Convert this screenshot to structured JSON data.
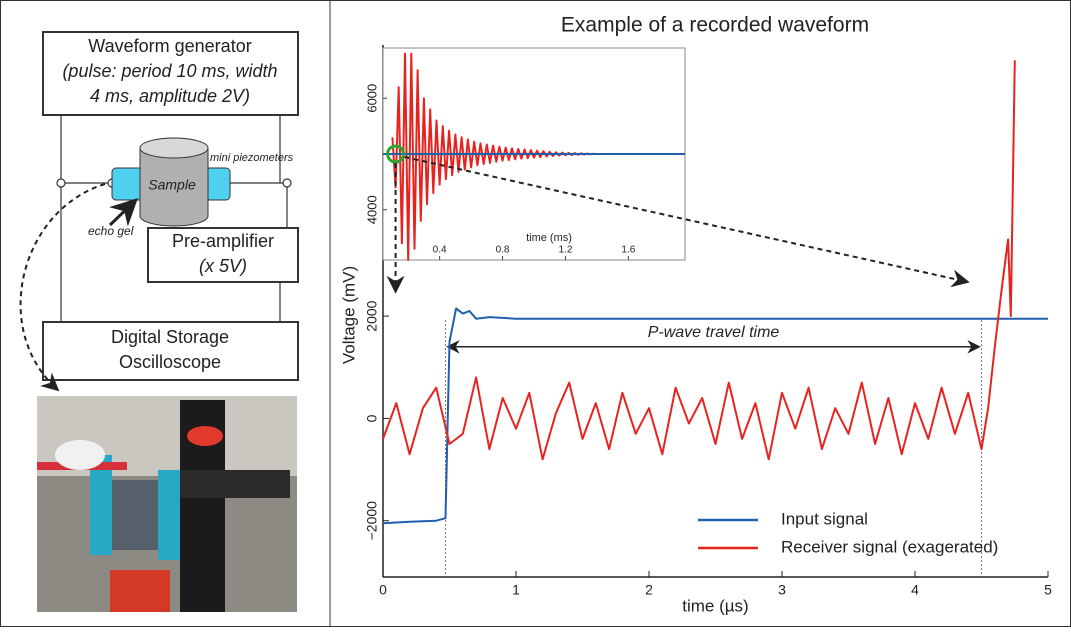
{
  "diagram": {
    "generator": {
      "title": "Waveform generator",
      "lines": [
        "(pulse: period 10 ms, width",
        "4 ms, amplitude 2V)"
      ]
    },
    "sample": "Sample",
    "piezometers": "mini piezometers",
    "echo_gel": "echo gel",
    "preamp": {
      "title": "Pre-amplifier",
      "gain": "(x 5V)"
    },
    "oscilloscope": [
      "Digital Storage",
      "Oscilloscope"
    ]
  },
  "chart_data": [
    {
      "type": "line",
      "title": "Example of a recorded waveform",
      "xlabel": "time (µs)",
      "ylabel": "Voltage (mV)",
      "xlim": [
        0,
        5
      ],
      "xticks": [
        0,
        1,
        2,
        3,
        4,
        5
      ],
      "ylim": [
        -3100,
        7300
      ],
      "yticks": [
        {
          "value": -2000,
          "label": "−2000"
        },
        0,
        2000
      ],
      "legend": "lower right",
      "annotation": {
        "text": "P-wave travel time",
        "x": [
          0.47,
          4.5
        ]
      },
      "series": [
        {
          "name": "Input signal",
          "color": "#1f5fad",
          "x": [
            0,
            0.2,
            0.4,
            0.47,
            0.5,
            0.55,
            0.6,
            0.65,
            0.7,
            0.8,
            1,
            2,
            3,
            4,
            5
          ],
          "values": [
            -2050,
            -2020,
            -2000,
            -1950,
            1500,
            2150,
            2050,
            2100,
            1950,
            1980,
            1950,
            1950,
            1950,
            1950,
            1950
          ]
        },
        {
          "name": "Receiver signal (exagerated)",
          "color": "#e8231f",
          "x": [
            0,
            0.1,
            0.2,
            0.3,
            0.4,
            0.5,
            0.6,
            0.7,
            0.8,
            0.9,
            1,
            1.1,
            1.2,
            1.3,
            1.4,
            1.5,
            1.6,
            1.7,
            1.8,
            1.9,
            2,
            2.1,
            2.2,
            2.3,
            2.4,
            2.5,
            2.6,
            2.7,
            2.8,
            2.9,
            3,
            3.1,
            3.2,
            3.3,
            3.4,
            3.5,
            3.6,
            3.7,
            3.8,
            3.9,
            4,
            4.1,
            4.2,
            4.3,
            4.4,
            4.5,
            4.55,
            4.6,
            4.65,
            4.7,
            4.72,
            4.75
          ],
          "values": [
            -400,
            300,
            -700,
            200,
            600,
            -500,
            -300,
            800,
            -600,
            400,
            -200,
            500,
            -800,
            100,
            700,
            -400,
            300,
            -600,
            500,
            -300,
            200,
            -700,
            600,
            -100,
            400,
            -500,
            700,
            -400,
            300,
            -800,
            500,
            -200,
            600,
            -600,
            200,
            -300,
            700,
            -500,
            400,
            -700,
            300,
            -400,
            600,
            -300,
            500,
            -600,
            200,
            1400,
            2500,
            3500,
            2000,
            7000
          ]
        }
      ]
    },
    {
      "type": "line",
      "xlabel": "time (ms)",
      "xlim": [
        0.04,
        1.96
      ],
      "xticks": [
        0.4,
        0.8,
        1.2,
        1.6
      ],
      "ylim": [
        3100,
        6900
      ],
      "yticks": [
        4000,
        6000
      ],
      "series": [
        {
          "color": "#e8231f",
          "x": [
            0.1,
            0.12,
            0.14,
            0.16,
            0.18,
            0.2,
            0.22,
            0.24,
            0.26,
            0.28,
            0.3,
            0.32,
            0.34,
            0.36,
            0.38,
            0.4,
            0.42,
            0.44,
            0.46,
            0.48,
            0.5,
            0.52,
            0.54,
            0.56,
            0.58,
            0.6,
            0.62,
            0.64,
            0.66,
            0.68,
            0.7,
            0.72,
            0.74,
            0.76,
            0.78,
            0.8,
            0.82,
            0.84,
            0.86,
            0.88,
            0.9,
            0.92,
            0.94,
            0.96,
            0.98,
            1,
            1.02,
            1.04,
            1.06,
            1.08,
            1.1,
            1.12,
            1.14,
            1.16,
            1.18,
            1.2,
            1.22,
            1.24,
            1.26,
            1.28,
            1.3,
            1.32,
            1.34,
            1.36,
            1.38,
            1.4
          ],
          "values": [
            5300,
            4400,
            6200,
            3400,
            6800,
            3100,
            6800,
            3300,
            6500,
            3800,
            6000,
            4100,
            5800,
            4300,
            5600,
            4450,
            5500,
            4550,
            5420,
            4620,
            5350,
            4680,
            5300,
            4720,
            5260,
            4760,
            5220,
            4800,
            5190,
            4820,
            5170,
            4840,
            5150,
            4860,
            5130,
            4880,
            5115,
            4890,
            5100,
            4905,
            5090,
            4915,
            5080,
            4925,
            5070,
            4935,
            5060,
            4945,
            5050,
            4955,
            5040,
            4965,
            5030,
            4972,
            5025,
            4978,
            5020,
            4982,
            5016,
            4986,
            5012,
            4990,
            5008,
            4994,
            5005,
            4996
          ]
        },
        {
          "color": "#1f5fad",
          "x": [
            0.04,
            1.96
          ],
          "values": [
            5000,
            5000
          ]
        }
      ]
    }
  ]
}
